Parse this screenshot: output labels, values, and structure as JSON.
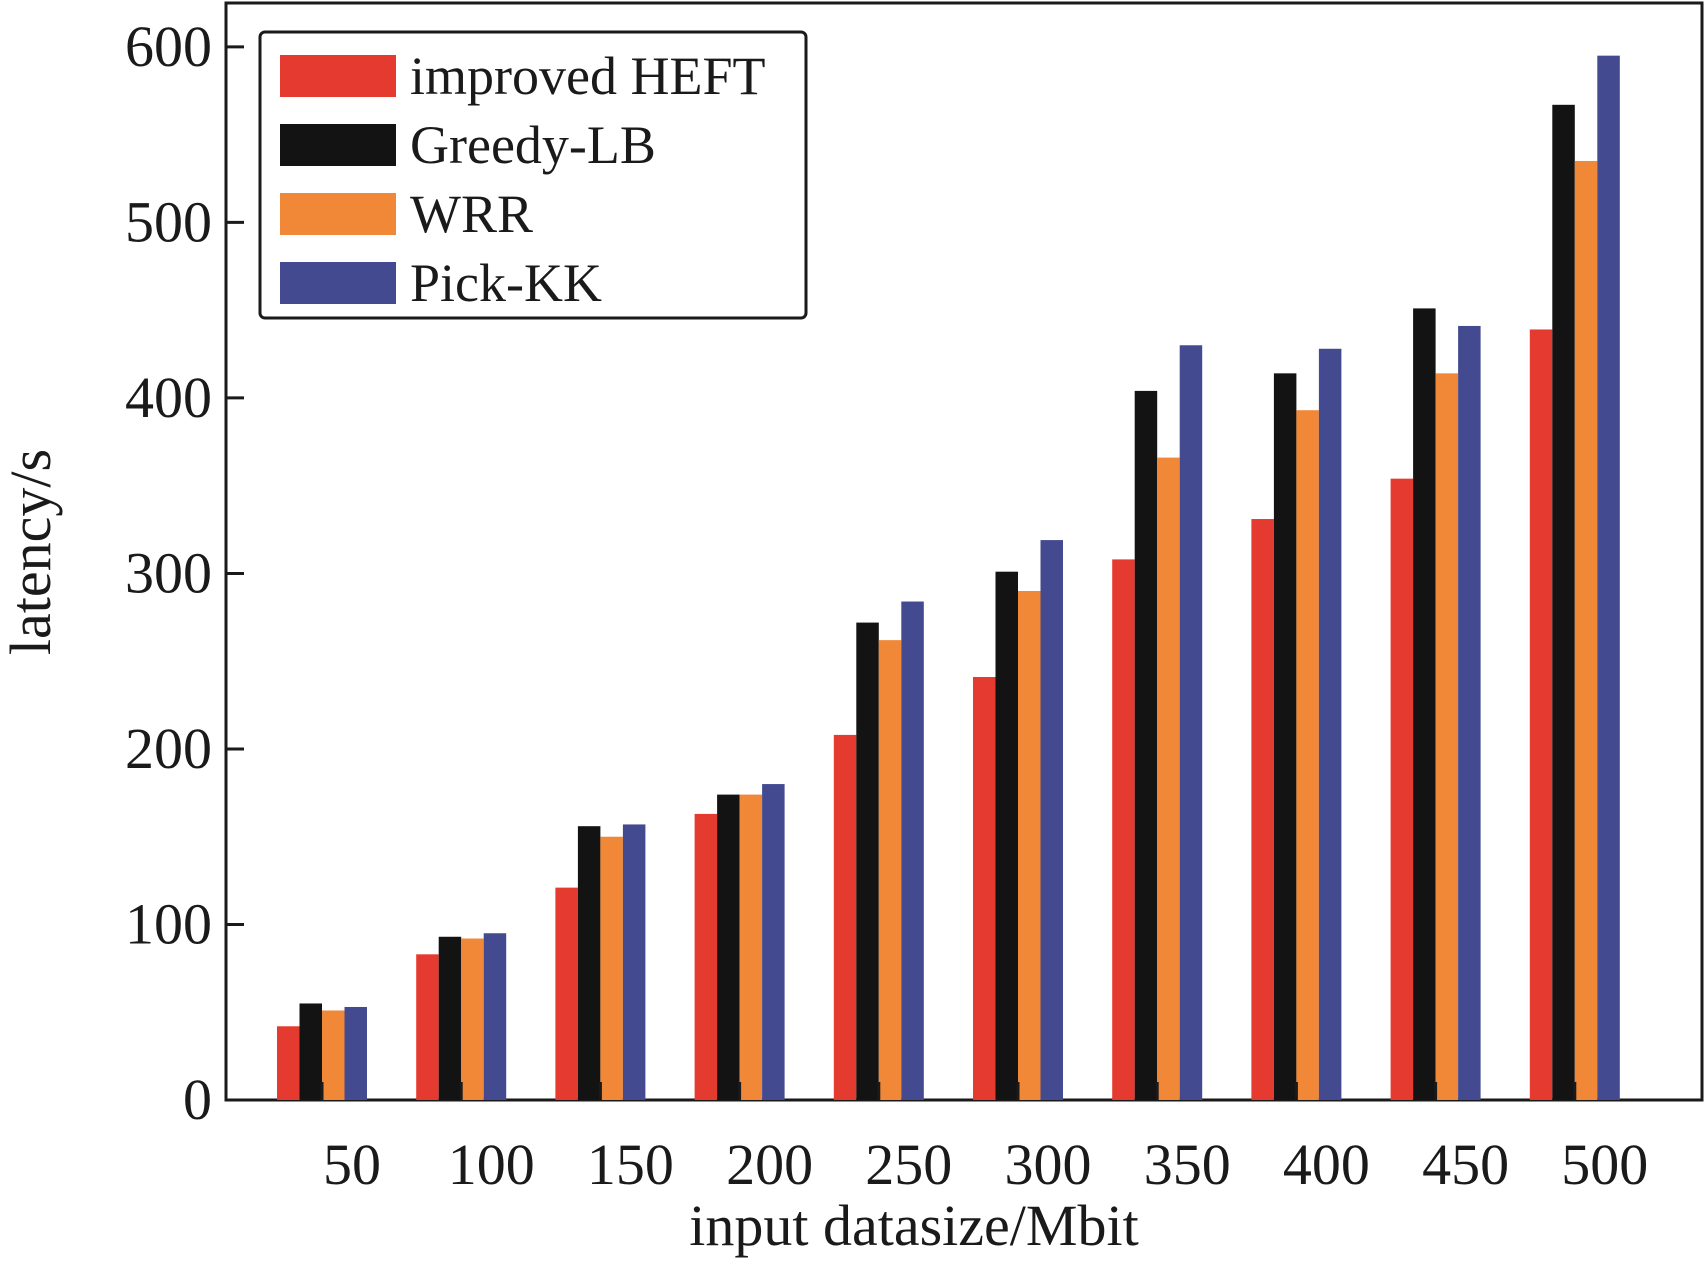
{
  "chart_data": {
    "type": "bar",
    "xlabel": "input datasize/Mbit",
    "ylabel": "latency/s",
    "ylim": [
      0,
      625
    ],
    "yticks": [
      "0",
      "100",
      "200",
      "300",
      "400",
      "500",
      "600"
    ],
    "grid": false,
    "legend_position": "top-left",
    "categories": [
      "50",
      "100",
      "150",
      "200",
      "250",
      "300",
      "350",
      "400",
      "450",
      "500"
    ],
    "series": [
      {
        "name": "improved HEFT",
        "color": "#e53a2f",
        "values": [
          42,
          83,
          121,
          163,
          208,
          241,
          308,
          331,
          354,
          439
        ]
      },
      {
        "name": "Greedy-LB",
        "color": "#131313",
        "values": [
          55,
          93,
          156,
          174,
          272,
          301,
          404,
          414,
          451,
          567
        ]
      },
      {
        "name": "WRR",
        "color": "#f08837",
        "values": [
          51,
          92,
          150,
          174,
          262,
          290,
          366,
          393,
          414,
          535
        ]
      },
      {
        "name": "Pick-KK",
        "color": "#434a8f",
        "values": [
          53,
          95,
          157,
          180,
          284,
          319,
          430,
          428,
          441,
          595
        ]
      }
    ]
  }
}
